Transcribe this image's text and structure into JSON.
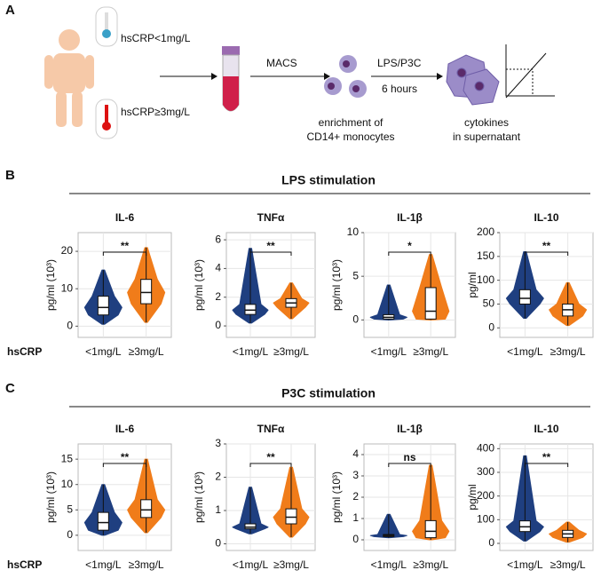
{
  "panel_a": {
    "label": "A",
    "low_group": "hsCRP<1mg/L",
    "high_group": "hsCRP≥3mg/L",
    "step1": "MACS",
    "step2a": "LPS/P3C",
    "step2b": "6 hours",
    "cells1": "enrichment of",
    "cells2": "CD14+ monocytes",
    "out1": "cytokines",
    "out2": "in supernatant"
  },
  "sections": [
    {
      "label": "B",
      "title": "LPS stimulation",
      "row_label": "hsCRP"
    },
    {
      "label": "C",
      "title": "P3C stimulation",
      "row_label": "hsCRP"
    }
  ],
  "chart_data": [
    {
      "type": "violin",
      "title": "IL-6",
      "y_label": "pg/ml (10³)",
      "significance": "**",
      "categories": [
        "<1mg/L",
        "≥3mg/L"
      ],
      "ylim": [
        -3,
        25
      ],
      "yticks": [
        0,
        10,
        20
      ],
      "grid": true,
      "series": [
        {
          "color": "#1f3f80",
          "values": {
            "whisker_low": 0.5,
            "q1": 3,
            "median": 5,
            "q3": 8,
            "whisker_high": 15
          }
        },
        {
          "color": "#f07c1a",
          "values": {
            "whisker_low": 1,
            "q1": 6,
            "median": 9,
            "q3": 12.5,
            "whisker_high": 21
          }
        }
      ]
    },
    {
      "type": "violin",
      "title": "TNFα",
      "y_label": "pg/ml (10³)",
      "significance": "**",
      "categories": [
        "<1mg/L",
        "≥3mg/L"
      ],
      "ylim": [
        -0.8,
        6.5
      ],
      "yticks": [
        0,
        2,
        4,
        6
      ],
      "grid": true,
      "series": [
        {
          "color": "#1f3f80",
          "values": {
            "whisker_low": 0.2,
            "q1": 0.8,
            "median": 1.1,
            "q3": 1.5,
            "whisker_high": 5.4
          }
        },
        {
          "color": "#f07c1a",
          "values": {
            "whisker_low": 0.5,
            "q1": 1.3,
            "median": 1.6,
            "q3": 1.9,
            "whisker_high": 3
          }
        }
      ]
    },
    {
      "type": "violin",
      "title": "IL-1β",
      "y_label": "pg/ml (10³)",
      "significance": "*",
      "categories": [
        "<1mg/L",
        "≥3mg/L"
      ],
      "ylim": [
        -2,
        10
      ],
      "yticks": [
        0,
        5,
        10
      ],
      "grid": true,
      "series": [
        {
          "color": "#1f3f80",
          "values": {
            "whisker_low": 0,
            "q1": 0.1,
            "median": 0.3,
            "q3": 0.6,
            "whisker_high": 4
          }
        },
        {
          "color": "#f07c1a",
          "values": {
            "whisker_low": 0,
            "q1": 0.1,
            "median": 1,
            "q3": 3.7,
            "whisker_high": 7.5
          }
        }
      ]
    },
    {
      "type": "violin",
      "title": "IL-10",
      "y_label": "pg/ml",
      "significance": "**",
      "categories": [
        "<1mg/L",
        "≥3mg/L"
      ],
      "ylim": [
        -20,
        200
      ],
      "yticks": [
        0,
        50,
        100,
        150,
        200
      ],
      "grid": true,
      "series": [
        {
          "color": "#1f3f80",
          "values": {
            "whisker_low": 20,
            "q1": 50,
            "median": 62,
            "q3": 80,
            "whisker_high": 160
          }
        },
        {
          "color": "#f07c1a",
          "values": {
            "whisker_low": 5,
            "q1": 25,
            "median": 38,
            "q3": 50,
            "whisker_high": 95
          }
        }
      ]
    },
    {
      "type": "violin",
      "title": "IL-6",
      "y_label": "pg/ml (10³)",
      "significance": "**",
      "categories": [
        "<1mg/L",
        "≥3mg/L"
      ],
      "ylim": [
        -3,
        18
      ],
      "yticks": [
        0,
        5,
        10,
        15
      ],
      "grid": true,
      "series": [
        {
          "color": "#1f3f80",
          "values": {
            "whisker_low": 0,
            "q1": 1,
            "median": 2.5,
            "q3": 4.5,
            "whisker_high": 10
          }
        },
        {
          "color": "#f07c1a",
          "values": {
            "whisker_low": 0.5,
            "q1": 3.5,
            "median": 5,
            "q3": 7,
            "whisker_high": 15
          }
        }
      ]
    },
    {
      "type": "violin",
      "title": "TNFα",
      "y_label": "pg/ml (10³)",
      "significance": "**",
      "categories": [
        "<1mg/L",
        "≥3mg/L"
      ],
      "ylim": [
        -0.2,
        3
      ],
      "yticks": [
        0,
        1,
        2,
        3
      ],
      "grid": true,
      "series": [
        {
          "color": "#1f3f80",
          "values": {
            "whisker_low": 0.3,
            "q1": 0.45,
            "median": 0.5,
            "q3": 0.6,
            "whisker_high": 1.7
          }
        },
        {
          "color": "#f07c1a",
          "values": {
            "whisker_low": 0.2,
            "q1": 0.6,
            "median": 0.8,
            "q3": 1.05,
            "whisker_high": 2.3
          }
        }
      ]
    },
    {
      "type": "violin",
      "title": "IL-1β",
      "y_label": "pg/ml (10³)",
      "significance": "ns",
      "categories": [
        "<1mg/L",
        "≥3mg/L"
      ],
      "ylim": [
        -0.5,
        4.5
      ],
      "yticks": [
        0,
        1,
        2,
        3,
        4
      ],
      "grid": true,
      "series": [
        {
          "color": "#1f3f80",
          "values": {
            "whisker_low": 0.1,
            "q1": 0.15,
            "median": 0.2,
            "q3": 0.25,
            "whisker_high": 1.2
          }
        },
        {
          "color": "#f07c1a",
          "values": {
            "whisker_low": 0,
            "q1": 0.1,
            "median": 0.4,
            "q3": 0.9,
            "whisker_high": 3.5
          }
        }
      ]
    },
    {
      "type": "violin",
      "title": "IL-10",
      "y_label": "pg/ml",
      "significance": "**",
      "categories": [
        "<1mg/L",
        "≥3mg/L"
      ],
      "ylim": [
        -30,
        420
      ],
      "yticks": [
        0,
        100,
        200,
        300,
        400
      ],
      "grid": true,
      "series": [
        {
          "color": "#1f3f80",
          "values": {
            "whisker_low": 10,
            "q1": 50,
            "median": 70,
            "q3": 95,
            "whisker_high": 370
          }
        },
        {
          "color": "#f07c1a",
          "values": {
            "whisker_low": 5,
            "q1": 25,
            "median": 40,
            "q3": 55,
            "whisker_high": 90
          }
        }
      ]
    }
  ]
}
